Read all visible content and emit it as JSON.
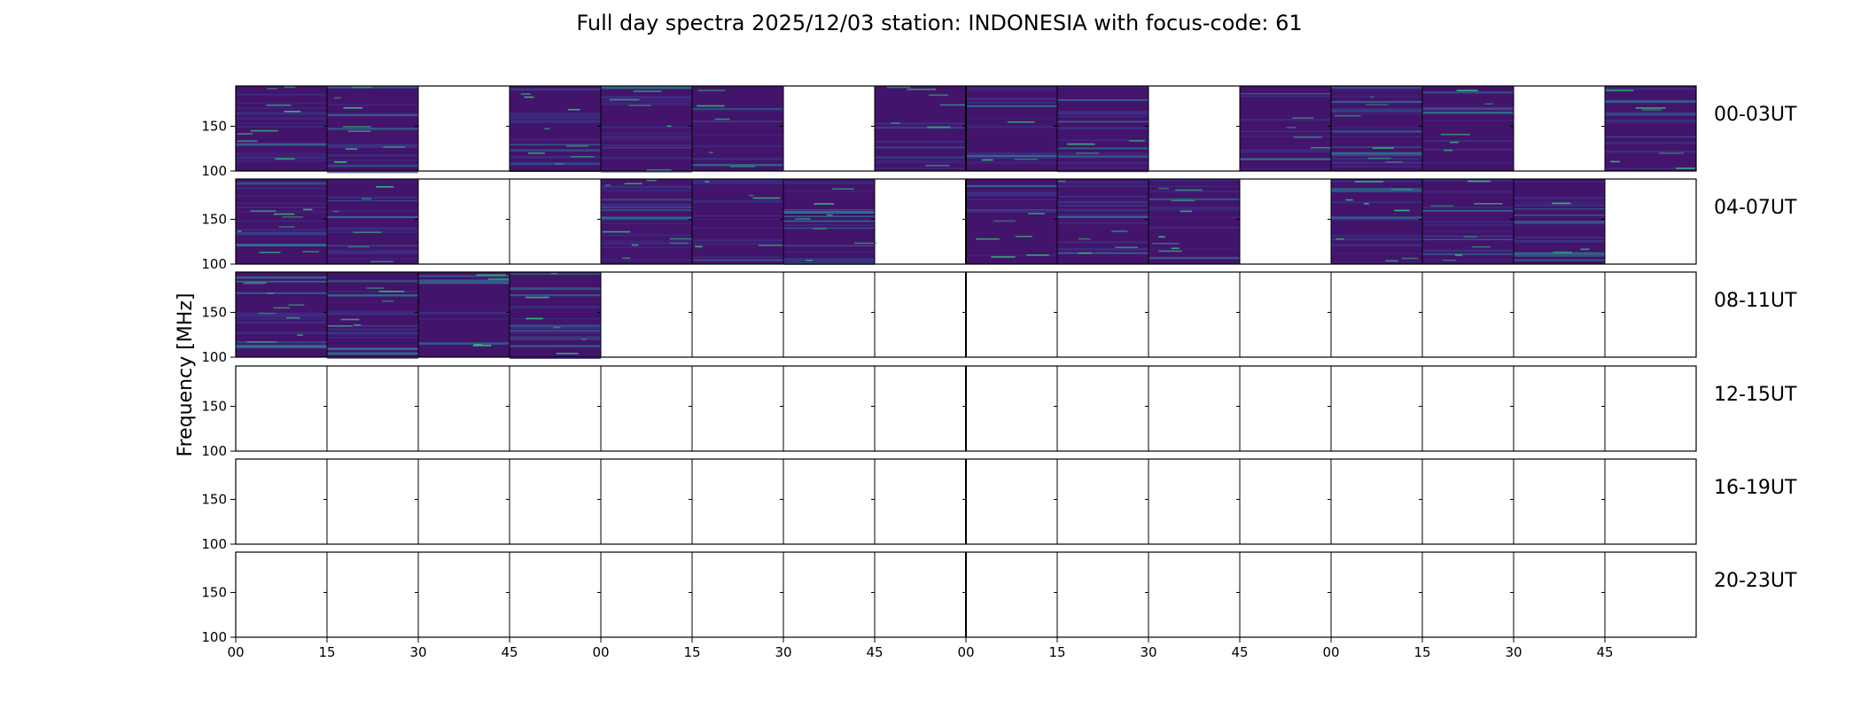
{
  "chart_data": {
    "type": "heatmap",
    "title": "Full day spectra 2025/12/03 station: INDONESIA with focus-code: 61",
    "ylabel": "Frequency [MHz]",
    "ylim": [
      100,
      195
    ],
    "y_ticks": [
      "100",
      "150"
    ],
    "x_ticks": [
      "00",
      "15",
      "30",
      "45",
      "00",
      "15",
      "30",
      "45",
      "00",
      "15",
      "30",
      "45",
      "00",
      "15",
      "30",
      "45"
    ],
    "rows": [
      {
        "label": "00-03UT",
        "has_data": [
          1,
          1,
          0,
          1,
          1,
          1,
          0,
          1,
          1,
          1,
          0,
          1,
          1,
          1,
          0,
          1
        ]
      },
      {
        "label": "04-07UT",
        "has_data": [
          1,
          1,
          0,
          0,
          1,
          1,
          1,
          0,
          1,
          1,
          1,
          0,
          1,
          1,
          1,
          0
        ]
      },
      {
        "label": "08-11UT",
        "has_data": [
          1,
          1,
          1,
          1,
          0,
          0,
          0,
          0,
          0,
          0,
          0,
          0,
          0,
          0,
          0,
          0
        ]
      },
      {
        "label": "12-15UT",
        "has_data": [
          0,
          0,
          0,
          0,
          0,
          0,
          0,
          0,
          0,
          0,
          0,
          0,
          0,
          0,
          0,
          0
        ]
      },
      {
        "label": "16-19UT",
        "has_data": [
          0,
          0,
          0,
          0,
          0,
          0,
          0,
          0,
          0,
          0,
          0,
          0,
          0,
          0,
          0,
          0
        ]
      },
      {
        "label": "20-23UT",
        "has_data": [
          0,
          0,
          0,
          0,
          0,
          0,
          0,
          0,
          0,
          0,
          0,
          0,
          0,
          0,
          0,
          0
        ]
      }
    ],
    "colors": {
      "background": "#43146b",
      "band": "#3b2f86",
      "band_strong": "#2e6e8e",
      "highlight": "#35b779",
      "frame": "#000000"
    }
  }
}
